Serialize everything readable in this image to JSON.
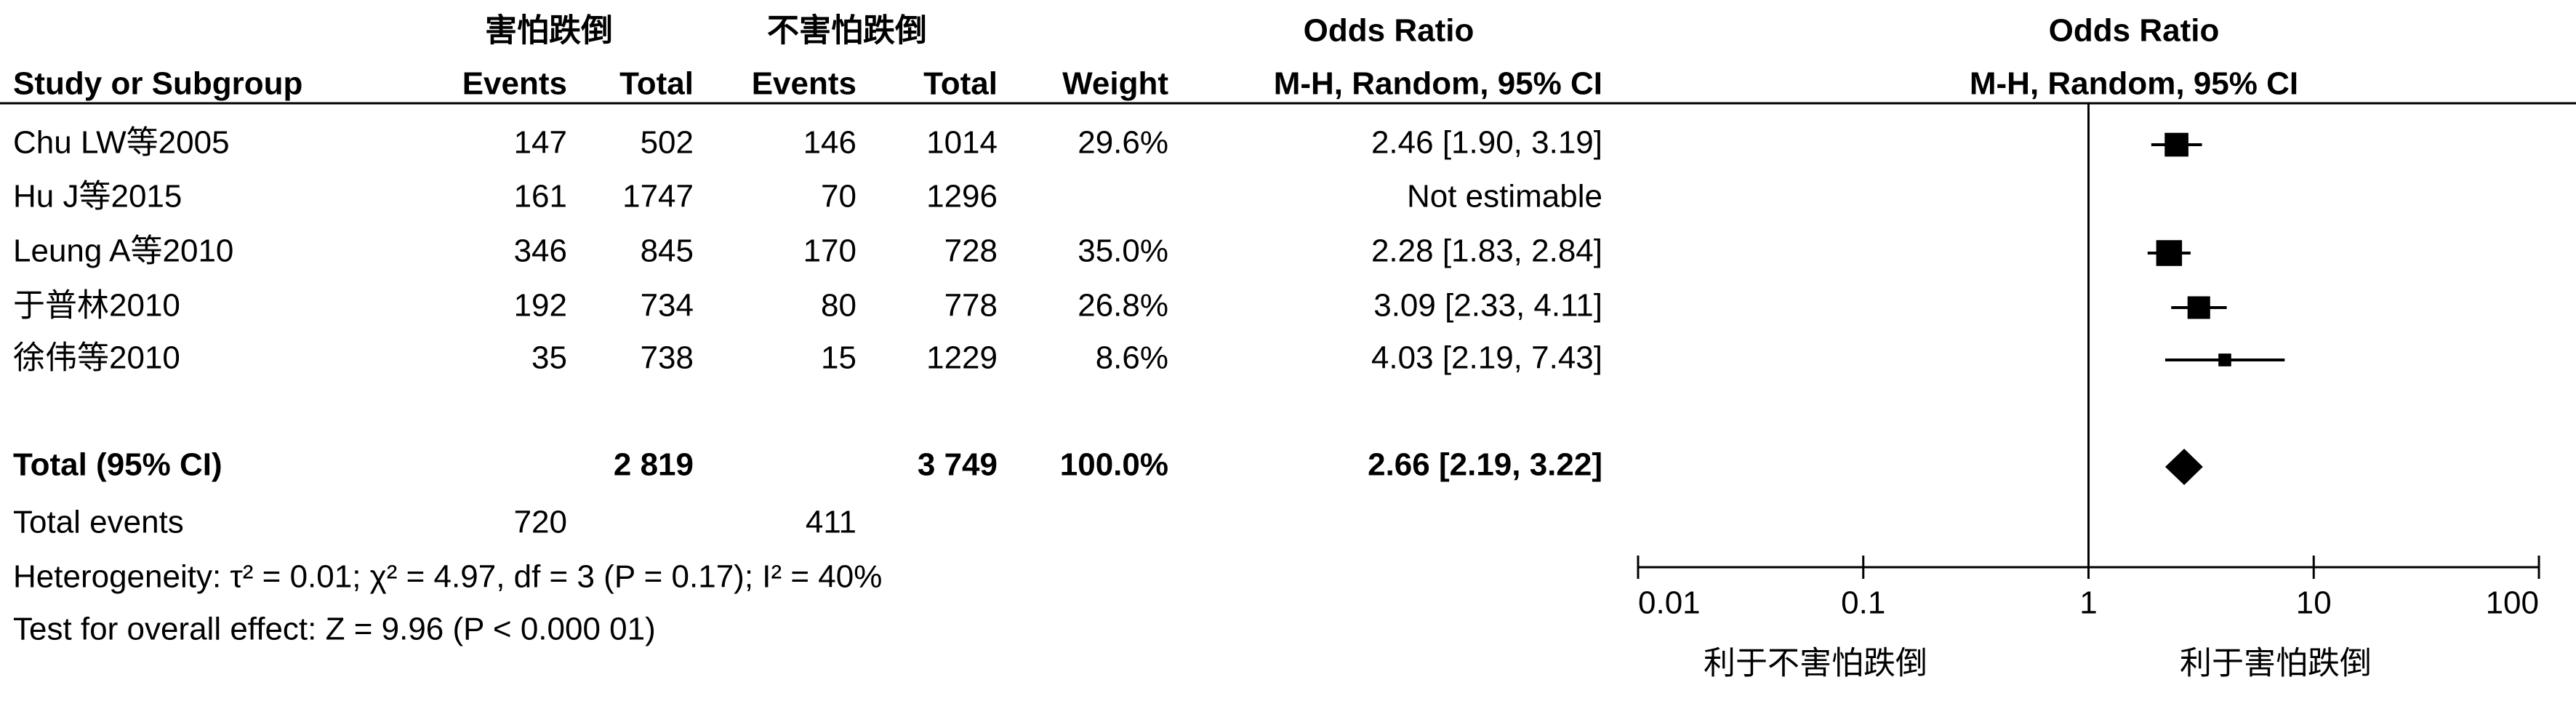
{
  "chart_data": {
    "type": "forest",
    "group_headers": [
      "害怕跌倒",
      "不害怕跌倒"
    ],
    "columns": [
      "Study or Subgroup",
      "Events",
      "Total",
      "Events",
      "Total",
      "Weight",
      "M-H, Random, 95% CI"
    ],
    "table_title": "Odds Ratio",
    "plot_title": "Odds Ratio",
    "plot_subtitle": "M-H, Random, 95% CI",
    "studies": [
      {
        "name": "Chu LW等2005",
        "events_1": 147,
        "total_1": 502,
        "events_2": 146,
        "total_2": 1014,
        "weight": 29.6,
        "weight_label": "29.6%",
        "or_label": "2.46 [1.90, 3.19]",
        "or": 2.46,
        "ci_lower": 1.9,
        "ci_upper": 3.19
      },
      {
        "name": "Hu J等2015",
        "events_1": 161,
        "total_1": 1747,
        "events_2": 70,
        "total_2": 1296,
        "or_label": "Not estimable"
      },
      {
        "name": "Leung A等2010",
        "events_1": 346,
        "total_1": 845,
        "events_2": 170,
        "total_2": 728,
        "weight": 35.0,
        "weight_label": "35.0%",
        "or_label": "2.28 [1.83, 2.84]",
        "or": 2.28,
        "ci_lower": 1.83,
        "ci_upper": 2.84
      },
      {
        "name": "于普林2010",
        "events_1": 192,
        "total_1": 734,
        "events_2": 80,
        "total_2": 778,
        "weight": 26.8,
        "weight_label": "26.8%",
        "or_label": "3.09 [2.33, 4.11]",
        "or": 3.09,
        "ci_lower": 2.33,
        "ci_upper": 4.11
      },
      {
        "name": "徐伟等2010",
        "events_1": 35,
        "total_1": 738,
        "events_2": 15,
        "total_2": 1229,
        "weight": 8.6,
        "weight_label": "8.6%",
        "or_label": "4.03 [2.19, 7.43]",
        "or": 4.03,
        "ci_lower": 2.19,
        "ci_upper": 7.43
      }
    ],
    "total": {
      "name": "Total (95% CI)",
      "total_1": "2 819",
      "total_2": "3 749",
      "weight_label": "100.0%",
      "or_label": "2.66 [2.19, 3.22]",
      "or": 2.66,
      "ci_lower": 2.19,
      "ci_upper": 3.22
    },
    "total_events": {
      "name": "Total events",
      "events_1": 720,
      "events_2": 411
    },
    "heterogeneity": "Heterogeneity: τ² = 0.01; χ² = 4.97, df = 3 (P = 0.17); I² = 40%",
    "overall_effect": "Test for overall effect: Z = 9.96 (P < 0.000 01)",
    "xscale": "log",
    "xlim": [
      0.01,
      100
    ],
    "xticks": [
      0.01,
      0.1,
      1,
      10,
      100
    ],
    "reference_line": 1,
    "favours_left": "利于不害怕跌倒",
    "favours_right": "利于害怕跌倒",
    "color": "#000000"
  }
}
